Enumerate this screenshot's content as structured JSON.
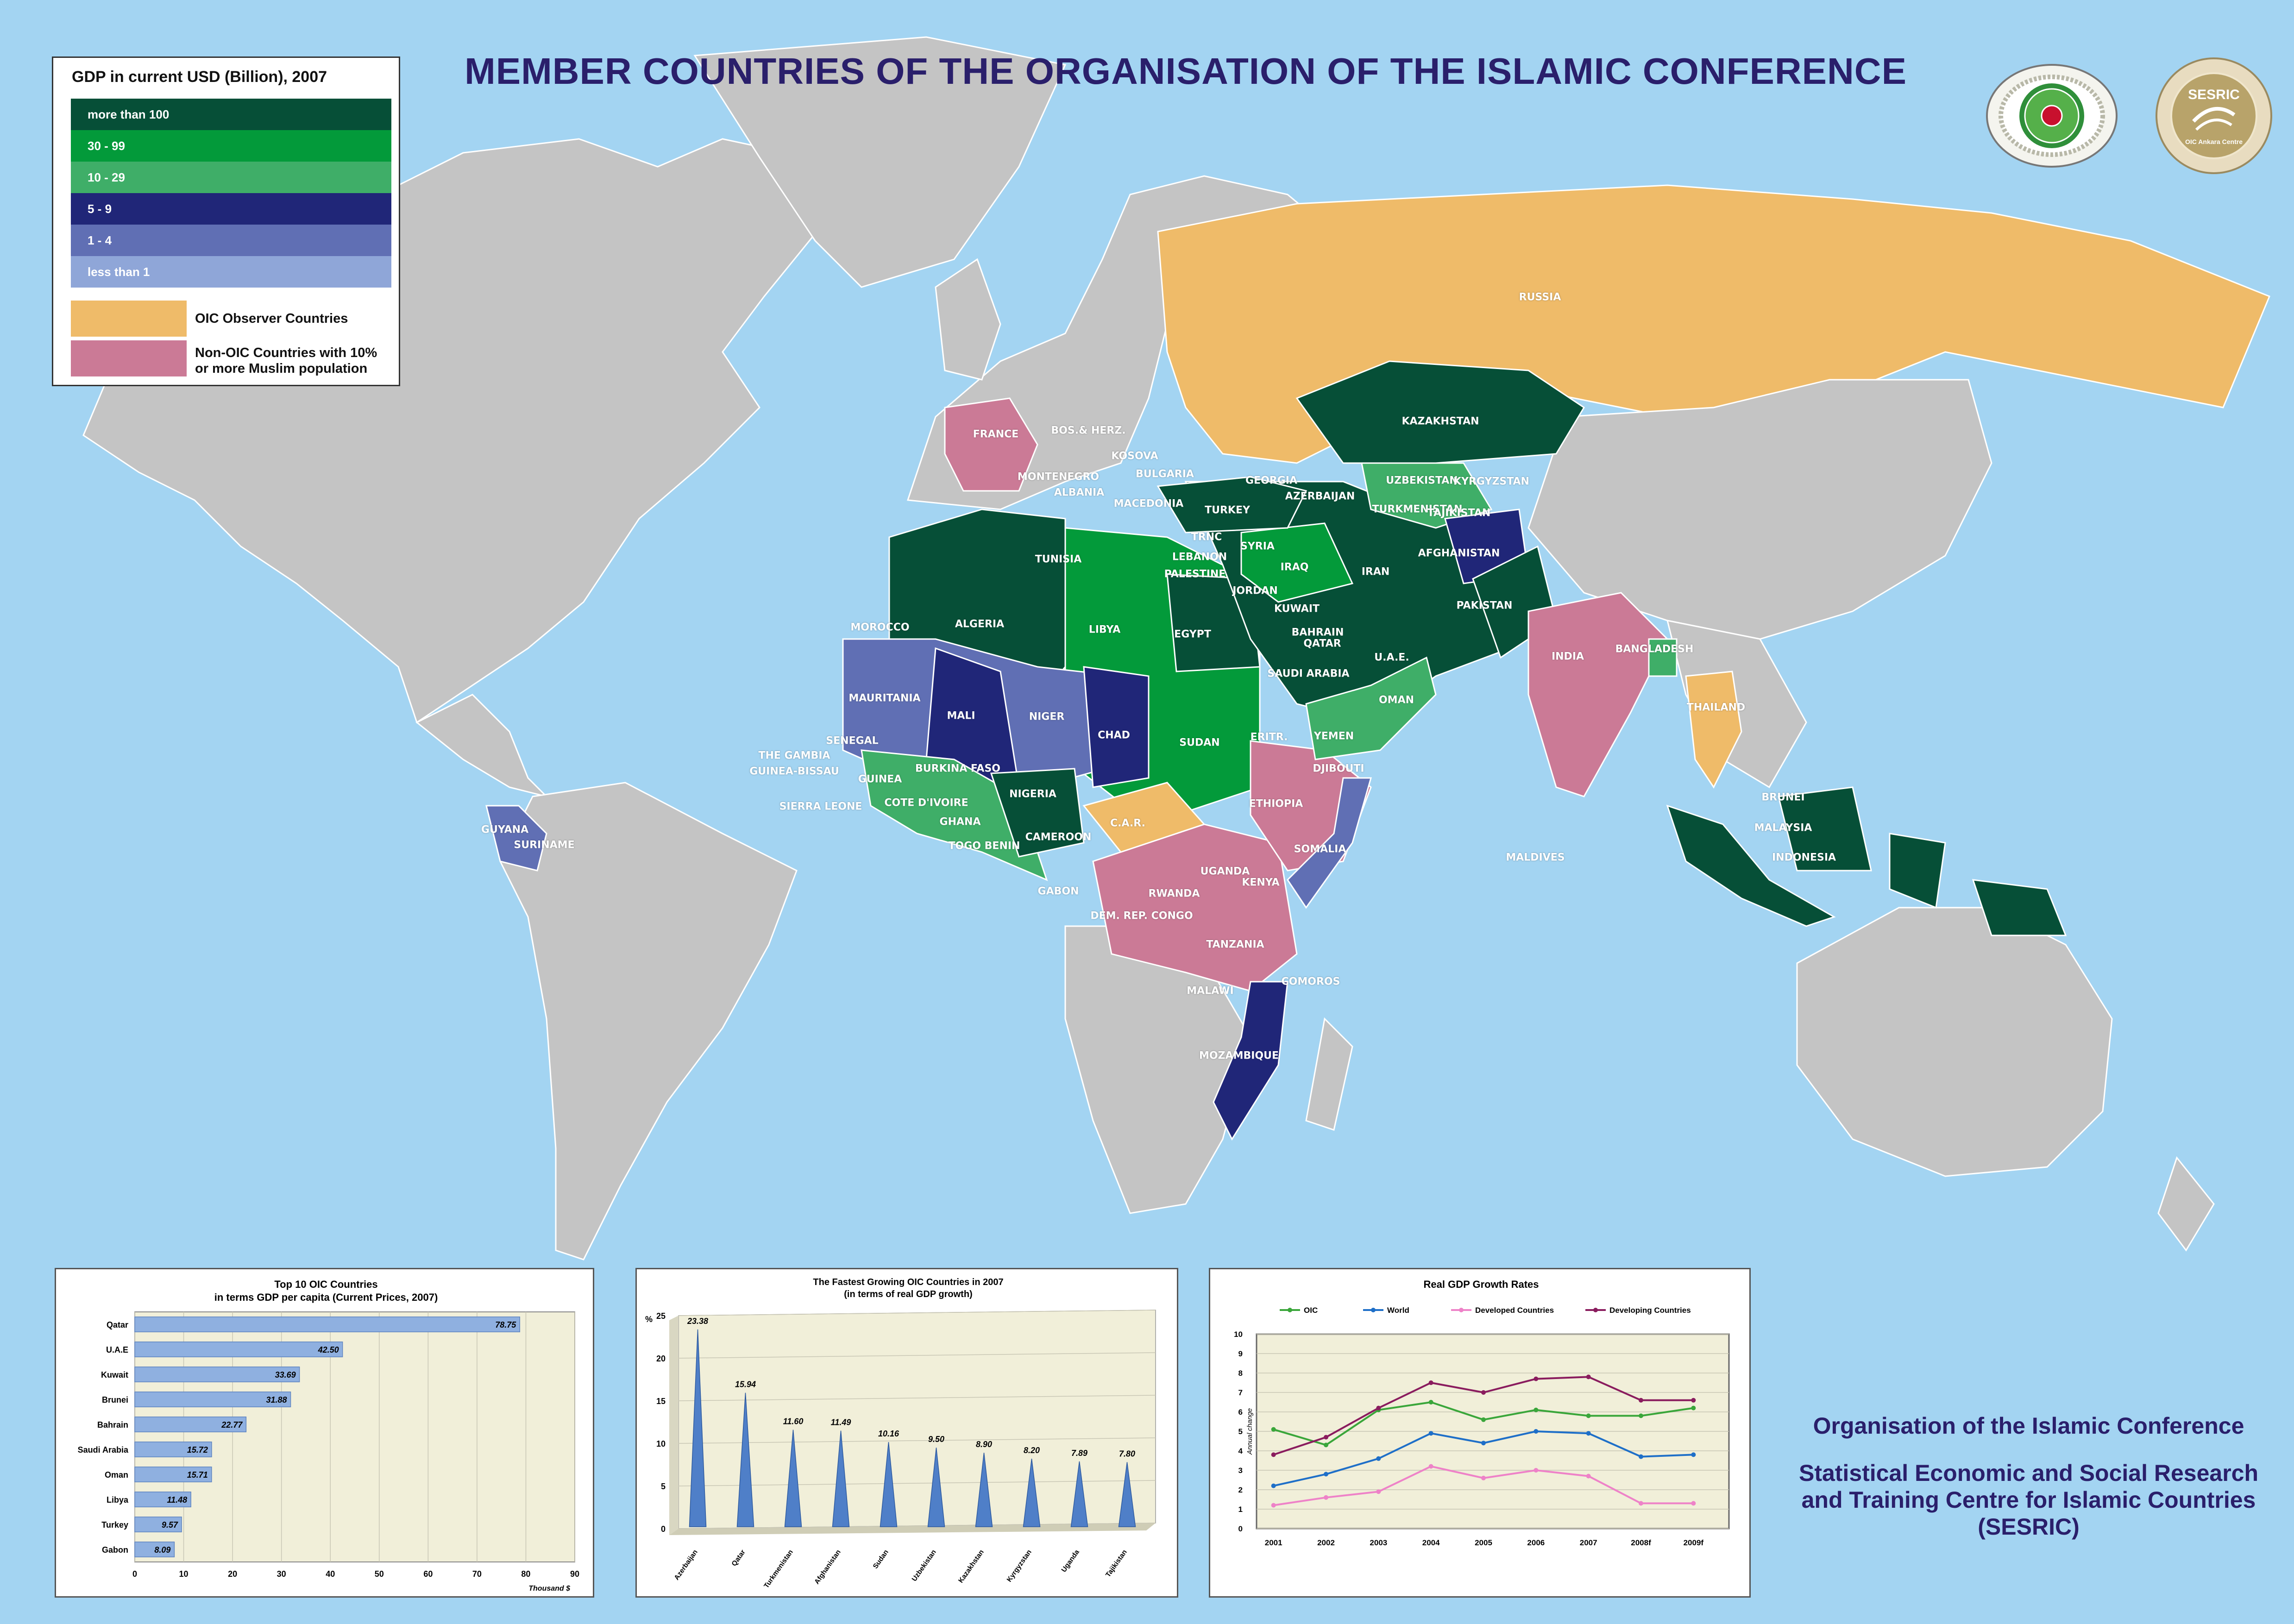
{
  "title": "MEMBER COUNTRIES OF THE ORGANISATION OF THE ISLAMIC CONFERENCE",
  "colors": {
    "ocean": "#a3d4f2",
    "land": "#c4c4c4",
    "more_than_100": "#064f37",
    "30_99": "#039a3a",
    "10_29": "#3fae68",
    "5_9": "#202678",
    "1_4": "#606fb4",
    "less_than_1": "#8fa6d8",
    "observer": "#efbb69",
    "non_oic": "#cb7a96",
    "title": "#2a1f6b"
  },
  "legend": {
    "title": "GDP in current USD (Billion), 2007",
    "items": [
      {
        "label": "more than 100",
        "color": "#064f37"
      },
      {
        "label": "30 - 99",
        "color": "#039a3a"
      },
      {
        "label": "10 - 29",
        "color": "#3fae68"
      },
      {
        "label": "5 - 9",
        "color": "#202678"
      },
      {
        "label": "1 - 4",
        "color": "#606fb4"
      },
      {
        "label": "less than 1",
        "color": "#8fa6d8"
      }
    ],
    "observer_label": "OIC Observer Countries",
    "non_oic_label": "Non-OIC Countries with 10% or more Muslim population"
  },
  "country_labels": [
    "KAZAKHSTAN",
    "RUSSIA",
    "UZBEKISTAN",
    "KYRGYZSTAN",
    "TURKMENISTAN",
    "TAJIKISTAN",
    "GEORGIA",
    "AZERBAIJAN",
    "TURKEY",
    "FRANCE",
    "BOS.& HERZ.",
    "KOSOVA",
    "BULGARIA",
    "MONTENEGRO",
    "ALBANIA",
    "MACEDONIA",
    "TRNC",
    "LEBANON",
    "PALESTINE",
    "SYRIA",
    "IRAQ",
    "JORDAN",
    "IRAN",
    "AFGHANISTAN",
    "PAKISTAN",
    "KUWAIT",
    "BAHRAIN",
    "QATAR",
    "U.A.E.",
    "SAUDI ARABIA",
    "OMAN",
    "YEMEN",
    "INDIA",
    "BANGLADESH",
    "THAILAND",
    "TUNISIA",
    "ALGERIA",
    "LIBYA",
    "EGYPT",
    "MOROCCO",
    "MAURITANIA",
    "MALI",
    "NIGER",
    "CHAD",
    "SUDAN",
    "ERITR.",
    "DJIBOUTI",
    "ETHIOPIA",
    "SOMALIA",
    "SENEGAL",
    "THE GAMBIA",
    "GUINEA-BISSAU",
    "GUINEA",
    "SIERRA LEONE",
    "BURKINA FASO",
    "COTE D'IVOIRE",
    "GHANA",
    "TOGO BENIN",
    "NIGERIA",
    "CAMEROON",
    "C.A.R.",
    "GABON",
    "UGANDA",
    "KENYA",
    "RWANDA",
    "DEM. REP. CONGO",
    "TANZANIA",
    "COMOROS",
    "MALAWI",
    "MOZAMBIQUE",
    "MALDIVES",
    "BRUNEI",
    "MALAYSIA",
    "INDONESIA",
    "GUYANA",
    "SURINAME"
  ],
  "footer": {
    "line1": "Organisation of the Islamic Conference",
    "line2": "Statistical Economic and Social Research",
    "line3": "and Training Centre for Islamic Countries",
    "line4": "(SESRIC)"
  },
  "logos": {
    "sesric_text": "SESRIC",
    "sesric_sub": "OIC Ankara Centre"
  },
  "chart_data": [
    {
      "type": "bar",
      "orientation": "horizontal",
      "title": "Top 10 OIC Countries in terms GDP per capita (Current Prices, 2007)",
      "title_line1": "Top 10 OIC Countries",
      "title_line2": "in terms GDP per capita (Current Prices, 2007)",
      "categories": [
        "Qatar",
        "U.A.E",
        "Kuwait",
        "Brunei",
        "Bahrain",
        "Saudi Arabia",
        "Oman",
        "Libya",
        "Turkey",
        "Gabon"
      ],
      "values": [
        78.75,
        42.5,
        33.69,
        31.88,
        22.77,
        15.72,
        15.71,
        11.48,
        9.57,
        8.09
      ],
      "value_labels": [
        "78.75",
        "42.50",
        "33.69",
        "31.88",
        "22.77",
        "15.72",
        "15.71",
        "11.48",
        "9.57",
        "8.09"
      ],
      "xlim": [
        0,
        90
      ],
      "xticks": [
        "0",
        "10",
        "20",
        "30",
        "40",
        "50",
        "60",
        "70",
        "80",
        "90"
      ],
      "xlabel": "Thousand $",
      "grid": true
    },
    {
      "type": "bar",
      "style": "cone",
      "title": "The Fastest Growing OIC Countries in 2007 (in terms of real GDP growth)",
      "title_line1": "The Fastest Growing OIC Countries in 2007",
      "title_line2": "(in terms of real GDP growth)",
      "categories": [
        "Azerbaijan",
        "Qatar",
        "Turkmenistan",
        "Afghanistan",
        "Sudan",
        "Uzbekistan",
        "Kazakhstan",
        "Kyrgyzstan",
        "Uganda",
        "Tajikistan"
      ],
      "values": [
        23.38,
        15.94,
        11.6,
        11.49,
        10.16,
        9.5,
        8.9,
        8.2,
        7.89,
        7.8
      ],
      "value_labels": [
        "23.38",
        "15.94",
        "11.60",
        "11.49",
        "10.16",
        "9.50",
        "8.90",
        "8.20",
        "7.89",
        "7.80"
      ],
      "ylim": [
        0,
        25
      ],
      "yticks": [
        "0",
        "5",
        "10",
        "15",
        "20",
        "25"
      ],
      "ylabel": "%",
      "grid": true
    },
    {
      "type": "line",
      "title": "Real GDP Growth Rates",
      "x": [
        "2001",
        "2002",
        "2003",
        "2004",
        "2005",
        "2006",
        "2007",
        "2008f",
        "2009f"
      ],
      "series": [
        {
          "name": "OIC",
          "color": "#3aa63a",
          "values": [
            5.1,
            4.3,
            6.1,
            6.5,
            5.6,
            6.1,
            5.8,
            5.8,
            6.2
          ]
        },
        {
          "name": "World",
          "color": "#1e6fc8",
          "values": [
            2.2,
            2.8,
            3.6,
            4.9,
            4.4,
            5.0,
            4.9,
            3.7,
            3.8
          ]
        },
        {
          "name": "Developed Countries",
          "color": "#ee82c8",
          "values": [
            1.2,
            1.6,
            1.9,
            3.2,
            2.6,
            3.0,
            2.7,
            1.3,
            1.3
          ]
        },
        {
          "name": "Developing Countries",
          "color": "#8a1c5e",
          "values": [
            3.8,
            4.7,
            6.2,
            7.5,
            7.0,
            7.7,
            7.8,
            6.6,
            6.6
          ]
        }
      ],
      "ylim": [
        0,
        10
      ],
      "yticks": [
        "0",
        "1",
        "2",
        "3",
        "4",
        "5",
        "6",
        "7",
        "8",
        "9",
        "10"
      ],
      "ylabel": "Annual change",
      "grid": true,
      "legend": "top"
    }
  ]
}
